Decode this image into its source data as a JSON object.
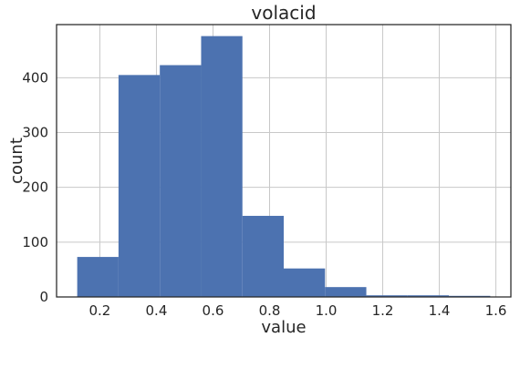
{
  "chart_data": {
    "type": "bar",
    "subtype": "histogram",
    "title": "volacid",
    "xlabel": "value",
    "ylabel": "count",
    "bin_edges": [
      0.12,
      0.266,
      0.412,
      0.558,
      0.704,
      0.85,
      0.996,
      1.142,
      1.288,
      1.434,
      1.58
    ],
    "values": [
      73,
      405,
      423,
      476,
      148,
      52,
      18,
      3,
      3,
      2
    ],
    "xlim": [
      0.047,
      1.653
    ],
    "ylim": [
      0,
      497
    ],
    "xticks": [
      0.2,
      0.4,
      0.6,
      0.8,
      1.0,
      1.2,
      1.4,
      1.6
    ],
    "xtick_labels": [
      "0.2",
      "0.4",
      "0.6",
      "0.8",
      "1.0",
      "1.2",
      "1.4",
      "1.6"
    ],
    "yticks": [
      0,
      100,
      200,
      300,
      400
    ],
    "ytick_labels": [
      "0",
      "100",
      "200",
      "300",
      "400"
    ],
    "grid": true,
    "bar_color": "#4c72b0"
  }
}
